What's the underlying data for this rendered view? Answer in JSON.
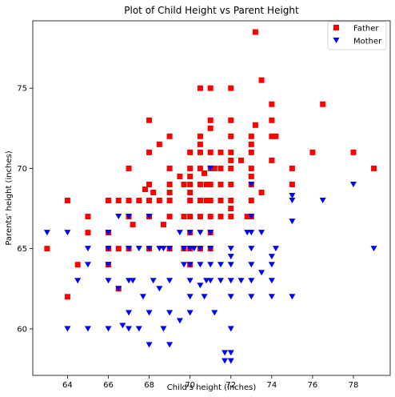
{
  "chart_data": {
    "type": "scatter",
    "title": "Plot of Child Height vs Parent Height",
    "xlabel": "Child's height (inches)",
    "ylabel": "Parents' height (inches)",
    "xlim": [
      62.3,
      79.8
    ],
    "ylim": [
      57.1,
      79.2
    ],
    "xticks": [
      64,
      66,
      68,
      70,
      72,
      74,
      76,
      78
    ],
    "yticks": [
      60,
      65,
      70,
      75
    ],
    "grid": false,
    "legend_position": "top-right",
    "series": [
      {
        "name": "Father",
        "marker": "square",
        "color": "#ff0000",
        "points": [
          [
            63,
            65
          ],
          [
            64,
            68
          ],
          [
            64,
            62
          ],
          [
            64.5,
            64
          ],
          [
            65,
            67
          ],
          [
            65,
            66
          ],
          [
            66,
            68
          ],
          [
            66,
            66
          ],
          [
            66,
            65
          ],
          [
            66,
            64
          ],
          [
            66.5,
            68
          ],
          [
            66.5,
            65
          ],
          [
            66.5,
            62.5
          ],
          [
            67,
            70
          ],
          [
            67,
            68
          ],
          [
            67,
            67
          ],
          [
            67,
            65
          ],
          [
            67.2,
            66.5
          ],
          [
            67.5,
            68
          ],
          [
            67.8,
            68.7
          ],
          [
            68,
            73
          ],
          [
            68,
            71
          ],
          [
            68,
            69
          ],
          [
            68,
            68
          ],
          [
            68,
            67
          ],
          [
            68,
            65
          ],
          [
            68.2,
            68.5
          ],
          [
            68.5,
            71.5
          ],
          [
            68.5,
            68
          ],
          [
            68.7,
            66.5
          ],
          [
            69,
            72
          ],
          [
            69,
            70
          ],
          [
            69,
            69
          ],
          [
            69,
            68.5
          ],
          [
            69,
            68
          ],
          [
            69,
            67
          ],
          [
            69,
            65
          ],
          [
            69.5,
            69.5
          ],
          [
            69.7,
            69
          ],
          [
            69.7,
            67
          ],
          [
            69.7,
            65
          ],
          [
            70,
            71
          ],
          [
            70,
            70
          ],
          [
            70,
            69.5
          ],
          [
            70,
            69
          ],
          [
            70,
            68.5
          ],
          [
            70,
            68
          ],
          [
            70,
            67
          ],
          [
            70,
            66
          ],
          [
            70,
            65
          ],
          [
            70,
            64
          ],
          [
            70.5,
            75
          ],
          [
            70.5,
            72
          ],
          [
            70.5,
            71.5
          ],
          [
            70.5,
            71
          ],
          [
            70.5,
            70
          ],
          [
            70.5,
            69
          ],
          [
            70.5,
            68
          ],
          [
            70.5,
            67
          ],
          [
            70.5,
            65
          ],
          [
            70.7,
            69.7
          ],
          [
            70.8,
            69
          ],
          [
            70.8,
            68
          ],
          [
            71,
            75
          ],
          [
            71,
            73
          ],
          [
            71,
            72.5
          ],
          [
            71,
            71
          ],
          [
            71,
            70
          ],
          [
            71,
            69
          ],
          [
            71,
            68
          ],
          [
            71,
            67
          ],
          [
            71,
            66
          ],
          [
            71,
            65
          ],
          [
            71.2,
            70
          ],
          [
            71.5,
            71
          ],
          [
            71.5,
            70
          ],
          [
            71.5,
            69
          ],
          [
            71.5,
            68
          ],
          [
            71.5,
            67
          ],
          [
            72,
            75
          ],
          [
            72,
            73
          ],
          [
            72,
            72
          ],
          [
            72,
            71
          ],
          [
            72,
            70.5
          ],
          [
            72,
            70
          ],
          [
            72,
            69
          ],
          [
            72,
            68
          ],
          [
            72,
            67.5
          ],
          [
            72,
            67
          ],
          [
            72.5,
            70.5
          ],
          [
            72.8,
            67
          ],
          [
            73,
            72
          ],
          [
            73,
            71.5
          ],
          [
            73,
            71
          ],
          [
            73,
            70
          ],
          [
            73,
            69.5
          ],
          [
            73,
            69
          ],
          [
            73,
            68
          ],
          [
            73,
            67
          ],
          [
            73.2,
            78.5
          ],
          [
            73.2,
            72.7
          ],
          [
            73.5,
            75.5
          ],
          [
            73.5,
            68.5
          ],
          [
            74,
            74
          ],
          [
            74,
            73
          ],
          [
            74,
            72
          ],
          [
            74,
            70.5
          ],
          [
            74.2,
            72
          ],
          [
            75,
            70
          ],
          [
            75,
            69
          ],
          [
            76,
            71
          ],
          [
            76.5,
            74
          ],
          [
            78,
            71
          ],
          [
            79,
            70
          ]
        ]
      },
      {
        "name": "Mother",
        "marker": "triangle-down",
        "color": "#0000ff",
        "points": [
          [
            63,
            66
          ],
          [
            64,
            66
          ],
          [
            64,
            60
          ],
          [
            64.5,
            63
          ],
          [
            65,
            65
          ],
          [
            65,
            60
          ],
          [
            65,
            64
          ],
          [
            66,
            66
          ],
          [
            66,
            65
          ],
          [
            66,
            64
          ],
          [
            66,
            63
          ],
          [
            66,
            60
          ],
          [
            66.5,
            67
          ],
          [
            66.5,
            62.5
          ],
          [
            66.7,
            60.2
          ],
          [
            67,
            67
          ],
          [
            67,
            65
          ],
          [
            67,
            63
          ],
          [
            67,
            61
          ],
          [
            67,
            60
          ],
          [
            67.2,
            63
          ],
          [
            67.5,
            65
          ],
          [
            67.5,
            60
          ],
          [
            67.7,
            62
          ],
          [
            68,
            67
          ],
          [
            68,
            65
          ],
          [
            68,
            61
          ],
          [
            68,
            59
          ],
          [
            68.2,
            63
          ],
          [
            68.5,
            65
          ],
          [
            68.5,
            62.5
          ],
          [
            68.7,
            65
          ],
          [
            68.7,
            60
          ],
          [
            69,
            65
          ],
          [
            69,
            63
          ],
          [
            69,
            61
          ],
          [
            69,
            59
          ],
          [
            69.5,
            66
          ],
          [
            69.5,
            60.5
          ],
          [
            69.7,
            65
          ],
          [
            69.7,
            64
          ],
          [
            70,
            66
          ],
          [
            70,
            65
          ],
          [
            70,
            64
          ],
          [
            70,
            63
          ],
          [
            70,
            62
          ],
          [
            70,
            61
          ],
          [
            70.2,
            65
          ],
          [
            70.5,
            66
          ],
          [
            70.5,
            65
          ],
          [
            70.5,
            64
          ],
          [
            70.5,
            62.7
          ],
          [
            70.7,
            62
          ],
          [
            70.8,
            63
          ],
          [
            71,
            70
          ],
          [
            71,
            66
          ],
          [
            71,
            65
          ],
          [
            71,
            64
          ],
          [
            71,
            63
          ],
          [
            71.2,
            61
          ],
          [
            71.5,
            64
          ],
          [
            71.5,
            63
          ],
          [
            71.7,
            58
          ],
          [
            71.7,
            58.5
          ],
          [
            72,
            65
          ],
          [
            72,
            64.5
          ],
          [
            72,
            64
          ],
          [
            72,
            63
          ],
          [
            72,
            62
          ],
          [
            72,
            60
          ],
          [
            72,
            58
          ],
          [
            72,
            58.5
          ],
          [
            72.5,
            63
          ],
          [
            72.8,
            66
          ],
          [
            73,
            69
          ],
          [
            73,
            67
          ],
          [
            73,
            66
          ],
          [
            73,
            65
          ],
          [
            73,
            64
          ],
          [
            73,
            63
          ],
          [
            73,
            62
          ],
          [
            73.5,
            66
          ],
          [
            73.5,
            63.5
          ],
          [
            74,
            64
          ],
          [
            74,
            64.5
          ],
          [
            74,
            63
          ],
          [
            74,
            62
          ],
          [
            74.2,
            65
          ],
          [
            75,
            68.3
          ],
          [
            75,
            68
          ],
          [
            75,
            66.7
          ],
          [
            75,
            62
          ],
          [
            76.5,
            68
          ],
          [
            78,
            69
          ],
          [
            79,
            65
          ]
        ]
      }
    ]
  }
}
